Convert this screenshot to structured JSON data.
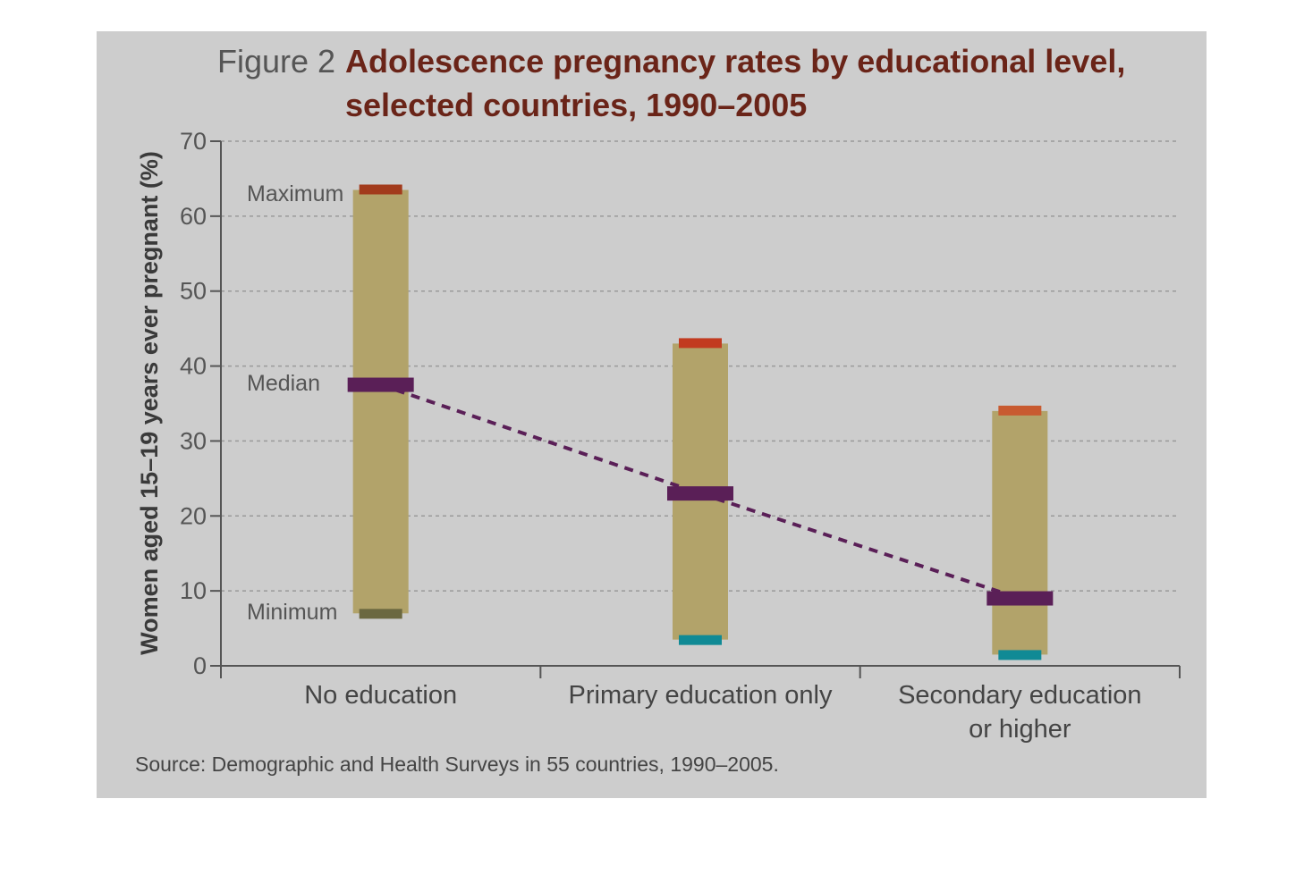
{
  "chart_data": {
    "type": "range-bar",
    "title_prefix": "Figure 2",
    "title": "Adolescence pregnancy rates by educational level,",
    "title_line2": "selected countries, 1990–2005",
    "ylabel": "Women aged 15–19 years ever pregnant (%)",
    "xlabel": "",
    "ylim": [
      0,
      70
    ],
    "yticks": [
      "0",
      "10",
      "20",
      "30",
      "40",
      "50",
      "60",
      "70"
    ],
    "grid": true,
    "categories": [
      {
        "line1": "No education",
        "line2": ""
      },
      {
        "line1": "Primary education only",
        "line2": ""
      },
      {
        "line1": "Secondary education",
        "line2": "or higher"
      }
    ],
    "series": [
      {
        "name": "Maximum",
        "values": [
          63.5,
          43,
          34
        ]
      },
      {
        "name": "Median",
        "values": [
          37.5,
          23,
          9
        ]
      },
      {
        "name": "Minimum",
        "values": [
          7,
          3.5,
          1.5
        ]
      }
    ],
    "annotations": {
      "maximum": "Maximum",
      "median": "Median",
      "minimum": "Minimum"
    },
    "source": "Source: Demographic and Health Surveys in 55 countries, 1990–2005.",
    "colors": {
      "background": "#cdcdcd",
      "range_bar": "#b2a36a",
      "median": "#5a1f57",
      "maximum_marks": [
        "#a23b1c",
        "#c23a1f",
        "#c85a30"
      ],
      "minimum_marks": [
        "#6b6840",
        "#108a95",
        "#108a95"
      ],
      "title_prefix": "#555555",
      "title": "#6a2418",
      "text": "#444444"
    }
  }
}
